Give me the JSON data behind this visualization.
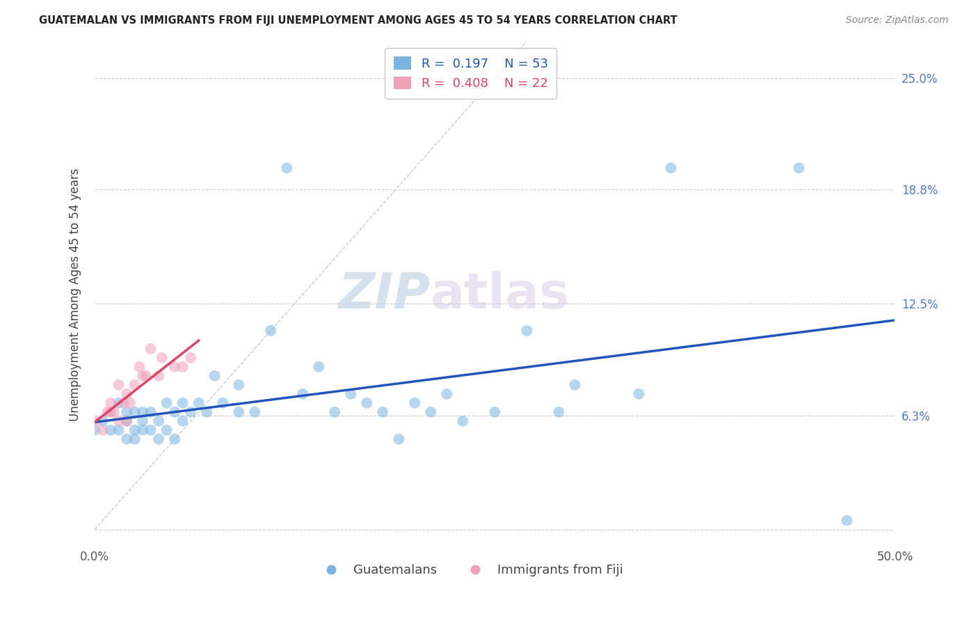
{
  "title": "GUATEMALAN VS IMMIGRANTS FROM FIJI UNEMPLOYMENT AMONG AGES 45 TO 54 YEARS CORRELATION CHART",
  "source": "Source: ZipAtlas.com",
  "ylabel": "Unemployment Among Ages 45 to 54 years",
  "xlim": [
    0.0,
    0.5
  ],
  "ylim": [
    -0.01,
    0.27
  ],
  "ytick_positions": [
    0.0,
    0.063,
    0.125,
    0.188,
    0.25
  ],
  "yticklabels": [
    "",
    "6.3%",
    "12.5%",
    "18.8%",
    "25.0%"
  ],
  "guatemalan_r": "0.197",
  "guatemalan_n": "53",
  "fiji_r": "0.408",
  "fiji_n": "22",
  "blue_color": "#7ab3e0",
  "pink_color": "#f0a0b8",
  "blue_line_color": "#2255bb",
  "pink_line_color": "#dd4466",
  "diagonal_color": "#cccccc",
  "guatemalan_x": [
    0.0,
    0.005,
    0.01,
    0.015,
    0.015,
    0.02,
    0.02,
    0.02,
    0.025,
    0.025,
    0.025,
    0.03,
    0.03,
    0.03,
    0.035,
    0.035,
    0.04,
    0.04,
    0.045,
    0.045,
    0.05,
    0.05,
    0.055,
    0.055,
    0.06,
    0.065,
    0.07,
    0.075,
    0.08,
    0.09,
    0.09,
    0.1,
    0.11,
    0.12,
    0.13,
    0.14,
    0.15,
    0.16,
    0.17,
    0.18,
    0.19,
    0.2,
    0.21,
    0.22,
    0.23,
    0.25,
    0.27,
    0.29,
    0.3,
    0.34,
    0.36,
    0.44,
    0.47
  ],
  "guatemalan_y": [
    0.055,
    0.06,
    0.055,
    0.055,
    0.07,
    0.05,
    0.06,
    0.065,
    0.05,
    0.055,
    0.065,
    0.055,
    0.06,
    0.065,
    0.055,
    0.065,
    0.05,
    0.06,
    0.055,
    0.07,
    0.05,
    0.065,
    0.06,
    0.07,
    0.065,
    0.07,
    0.065,
    0.085,
    0.07,
    0.065,
    0.08,
    0.065,
    0.11,
    0.2,
    0.075,
    0.09,
    0.065,
    0.075,
    0.07,
    0.065,
    0.05,
    0.07,
    0.065,
    0.075,
    0.06,
    0.065,
    0.11,
    0.065,
    0.08,
    0.075,
    0.2,
    0.2,
    0.005
  ],
  "fiji_x": [
    0.0,
    0.005,
    0.008,
    0.01,
    0.01,
    0.012,
    0.015,
    0.015,
    0.018,
    0.02,
    0.02,
    0.022,
    0.025,
    0.028,
    0.03,
    0.032,
    0.035,
    0.04,
    0.042,
    0.05,
    0.055,
    0.06
  ],
  "fiji_y": [
    0.06,
    0.055,
    0.065,
    0.065,
    0.07,
    0.065,
    0.06,
    0.08,
    0.07,
    0.06,
    0.075,
    0.07,
    0.08,
    0.09,
    0.085,
    0.085,
    0.1,
    0.085,
    0.095,
    0.09,
    0.09,
    0.095
  ]
}
